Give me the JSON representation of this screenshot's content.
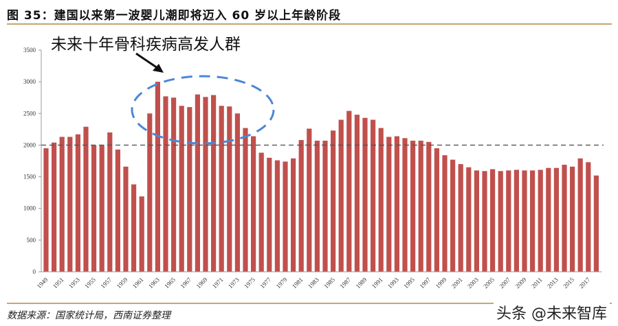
{
  "title": "图 35：建国以来第一波婴儿潮即将迈入 60 岁以上年龄阶段",
  "source": "数据来源：国家统计局，西南证券整理",
  "watermark": "头条 @未来智库",
  "colors": {
    "bar": "#c0504d",
    "accent_rule": "#c9a46a",
    "ellipse": "#4a86d8",
    "reference_line": "#555555"
  },
  "chart_data": {
    "type": "bar",
    "title": "",
    "xlabel": "",
    "ylabel": "",
    "ylim": [
      0,
      3500
    ],
    "yticks": [
      0,
      500,
      1000,
      1500,
      2000,
      2500,
      3000,
      3500
    ],
    "grid": false,
    "reference_line": {
      "y": 2000,
      "style": "dashed"
    },
    "annotation": {
      "text": "未来十年骨科疾病高发人群",
      "highlight": "dashed ellipse around 1962-1975"
    },
    "categories": [
      1949,
      1950,
      1951,
      1952,
      1953,
      1954,
      1955,
      1956,
      1957,
      1958,
      1959,
      1960,
      1961,
      1962,
      1963,
      1964,
      1965,
      1966,
      1967,
      1968,
      1969,
      1970,
      1971,
      1972,
      1973,
      1974,
      1975,
      1976,
      1977,
      1978,
      1979,
      1980,
      1981,
      1982,
      1983,
      1984,
      1985,
      1986,
      1987,
      1988,
      1989,
      1990,
      1991,
      1992,
      1993,
      1994,
      1995,
      1996,
      1997,
      1998,
      1999,
      2000,
      2001,
      2002,
      2003,
      2004,
      2005,
      2006,
      2007,
      2008,
      2009,
      2010,
      2011,
      2012,
      2013,
      2014,
      2015,
      2016,
      2017,
      2018
    ],
    "tick_labels": [
      "1949",
      "1951",
      "1953",
      "1955",
      "1957",
      "1959",
      "1961",
      "1963",
      "1965",
      "1967",
      "1969",
      "1971",
      "1973",
      "1975",
      "1977",
      "1979",
      "1981",
      "1983",
      "1985",
      "1987",
      "1989",
      "1991",
      "1993",
      "1995",
      "1997",
      "1999",
      "2001",
      "2003",
      "2005",
      "2007",
      "2009",
      "2011",
      "2013",
      "2015",
      "2017"
    ],
    "values": [
      1950,
      2040,
      2130,
      2130,
      2170,
      2290,
      2000,
      2000,
      2200,
      1930,
      1660,
      1380,
      1190,
      2500,
      3000,
      2770,
      2750,
      2620,
      2600,
      2800,
      2760,
      2790,
      2620,
      2610,
      2500,
      2270,
      2140,
      1880,
      1800,
      1760,
      1740,
      1790,
      2080,
      2260,
      2070,
      2070,
      2230,
      2400,
      2540,
      2480,
      2430,
      2400,
      2270,
      2130,
      2140,
      2110,
      2070,
      2070,
      2050,
      1950,
      1840,
      1770,
      1700,
      1650,
      1600,
      1590,
      1620,
      1590,
      1600,
      1610,
      1600,
      1600,
      1610,
      1640,
      1640,
      1690,
      1660,
      1790,
      1730,
      1520
    ]
  }
}
